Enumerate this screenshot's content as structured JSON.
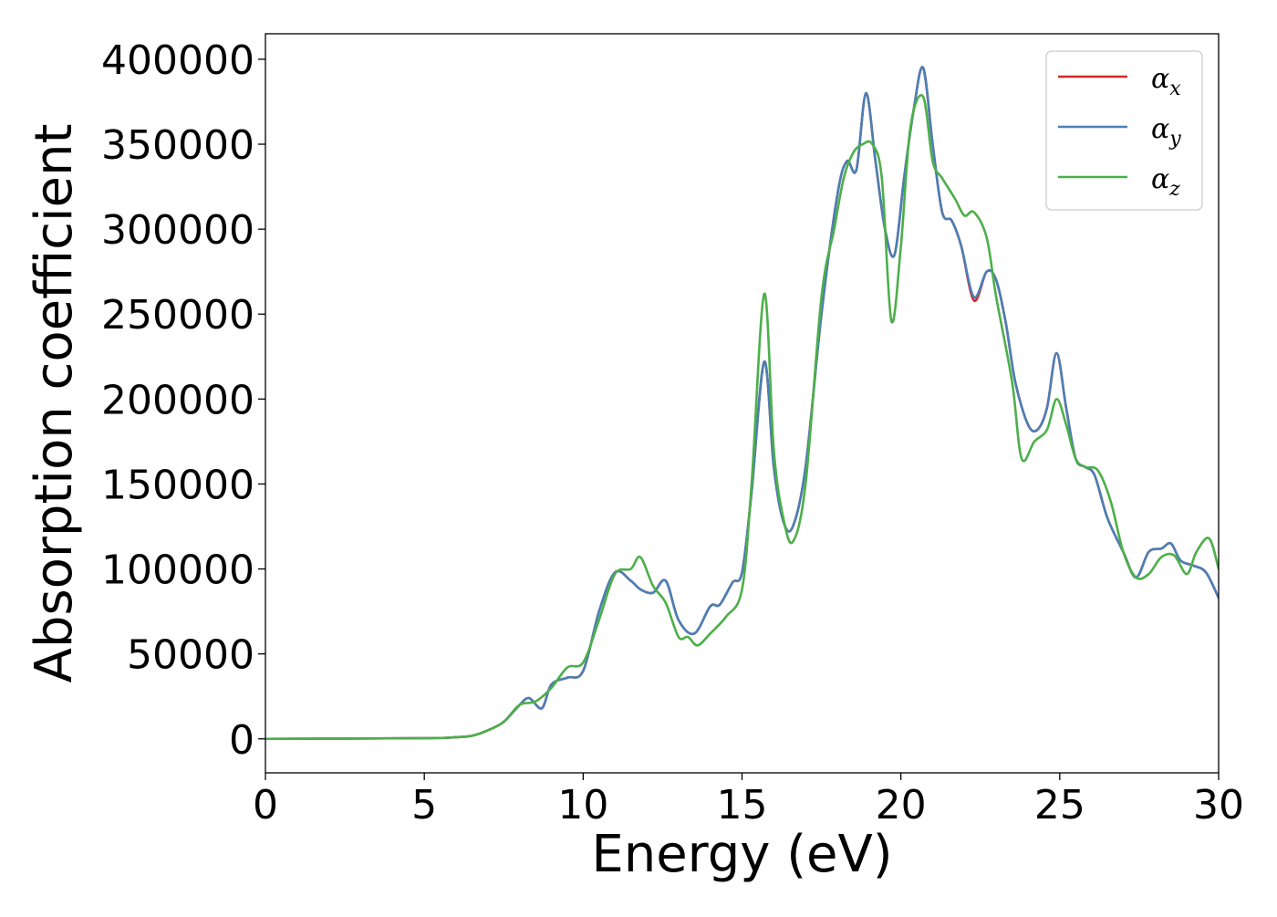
{
  "chart_data": {
    "type": "line",
    "xlabel": "Energy (eV)",
    "ylabel": "Absorption coefficient",
    "xlim": [
      0,
      30
    ],
    "ylim": [
      -20000,
      415000
    ],
    "xticks": [
      0,
      5,
      10,
      15,
      20,
      25,
      30
    ],
    "yticks": [
      0,
      50000,
      100000,
      150000,
      200000,
      250000,
      300000,
      350000,
      400000
    ],
    "grid": false,
    "legend_position": "top-right",
    "series": [
      {
        "name": "αx",
        "symbol": "α",
        "subscript": "x",
        "color": "#d62728",
        "x": [
          0,
          5,
          6,
          6.5,
          7,
          7.5,
          8,
          8.3,
          8.7,
          9,
          9.5,
          10,
          10.5,
          11,
          11.5,
          11.8,
          12.2,
          12.6,
          13,
          13.5,
          14,
          14.3,
          14.7,
          15,
          15.3,
          15.7,
          16,
          16.3,
          16.6,
          17,
          17.5,
          18,
          18.3,
          18.6,
          18.9,
          19.2,
          19.5,
          19.8,
          20.1,
          20.4,
          20.7,
          21,
          21.3,
          21.6,
          21.9,
          22.3,
          22.7,
          23,
          23.3,
          23.6,
          24,
          24.3,
          24.6,
          24.9,
          25.2,
          25.5,
          25.8,
          26.1,
          26.5,
          27,
          27.4,
          27.8,
          28.2,
          28.5,
          28.8,
          29.2,
          29.6,
          30
        ],
        "y": [
          0,
          400,
          1000,
          1800,
          5000,
          10000,
          20000,
          24000,
          18000,
          32000,
          36000,
          40000,
          75000,
          98000,
          93000,
          88000,
          86000,
          93000,
          70000,
          62000,
          78000,
          79000,
          92000,
          98000,
          145000,
          222000,
          160000,
          128000,
          125000,
          160000,
          250000,
          320000,
          340000,
          335000,
          380000,
          340000,
          300000,
          285000,
          330000,
          370000,
          395000,
          350000,
          310000,
          305000,
          290000,
          258000,
          275000,
          270000,
          245000,
          210000,
          185000,
          182000,
          195000,
          227000,
          195000,
          165000,
          160000,
          155000,
          130000,
          110000,
          95000,
          110000,
          112000,
          115000,
          105000,
          102000,
          98000,
          83000
        ]
      },
      {
        "name": "αy",
        "symbol": "α",
        "subscript": "y",
        "color": "#4a7fb5",
        "x": [
          0,
          5,
          6,
          6.5,
          7,
          7.5,
          8,
          8.3,
          8.7,
          9,
          9.5,
          10,
          10.5,
          11,
          11.5,
          11.8,
          12.2,
          12.6,
          13,
          13.5,
          14,
          14.3,
          14.7,
          15,
          15.3,
          15.7,
          16,
          16.3,
          16.6,
          17,
          17.5,
          18,
          18.3,
          18.6,
          18.9,
          19.2,
          19.5,
          19.8,
          20.1,
          20.4,
          20.7,
          21,
          21.3,
          21.6,
          21.9,
          22.3,
          22.7,
          23,
          23.3,
          23.6,
          24,
          24.3,
          24.6,
          24.9,
          25.2,
          25.5,
          25.8,
          26.1,
          26.5,
          27,
          27.4,
          27.8,
          28.2,
          28.5,
          28.8,
          29.2,
          29.6,
          30
        ],
        "y": [
          0,
          400,
          1000,
          1800,
          5000,
          10000,
          20000,
          24000,
          18000,
          32000,
          36000,
          40000,
          75000,
          98000,
          93000,
          88000,
          86000,
          93000,
          70000,
          62000,
          78000,
          79000,
          92000,
          98000,
          145000,
          222000,
          160000,
          128000,
          125000,
          160000,
          250000,
          320000,
          340000,
          335000,
          380000,
          340000,
          300000,
          285000,
          330000,
          370000,
          395000,
          350000,
          310000,
          305000,
          290000,
          260000,
          275000,
          270000,
          245000,
          210000,
          185000,
          182000,
          195000,
          227000,
          195000,
          165000,
          160000,
          155000,
          130000,
          110000,
          95000,
          110000,
          112000,
          115000,
          105000,
          102000,
          98000,
          83000
        ]
      },
      {
        "name": "αz",
        "symbol": "α",
        "subscript": "z",
        "color": "#4daf4a",
        "x": [
          0,
          5,
          6,
          6.5,
          7,
          7.5,
          8,
          8.5,
          9,
          9.5,
          10,
          10.5,
          11,
          11.5,
          11.8,
          12.2,
          12.6,
          13,
          13.3,
          13.6,
          14,
          14.5,
          15,
          15.3,
          15.7,
          16,
          16.3,
          16.6,
          17,
          17.5,
          17.9,
          18.2,
          18.5,
          18.8,
          19.1,
          19.4,
          19.7,
          20,
          20.3,
          20.7,
          21,
          21.3,
          21.7,
          22,
          22.3,
          22.7,
          23,
          23.5,
          23.8,
          24.2,
          24.6,
          24.9,
          25.2,
          25.5,
          25.8,
          26.2,
          26.6,
          27,
          27.4,
          27.8,
          28.2,
          28.6,
          29,
          29.3,
          29.7,
          30
        ],
        "y": [
          0,
          400,
          1000,
          1800,
          5000,
          10000,
          20000,
          22000,
          30000,
          42000,
          45000,
          70000,
          97000,
          100000,
          107000,
          90000,
          80000,
          60000,
          60000,
          55000,
          62000,
          72000,
          88000,
          150000,
          262000,
          170000,
          130000,
          116000,
          150000,
          260000,
          300000,
          330000,
          345000,
          350000,
          350000,
          330000,
          246000,
          290000,
          360000,
          378000,
          340000,
          330000,
          318000,
          308000,
          310000,
          295000,
          260000,
          210000,
          165000,
          175000,
          182000,
          200000,
          185000,
          165000,
          160000,
          158000,
          140000,
          110000,
          95000,
          97000,
          107000,
          108000,
          97000,
          110000,
          118000,
          100000
        ]
      }
    ]
  }
}
